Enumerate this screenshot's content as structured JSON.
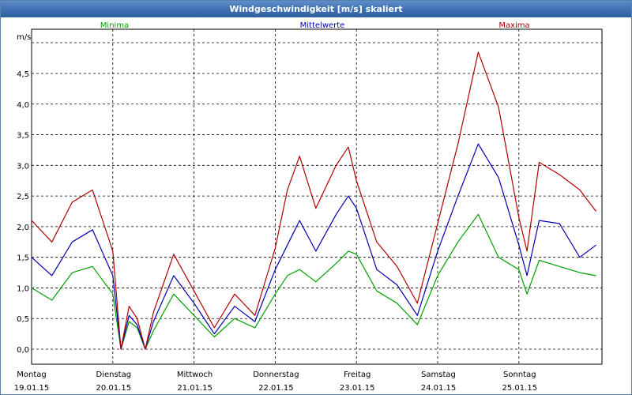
{
  "window": {
    "title": "Windgeschwindigkeit [m/s] skaliert"
  },
  "chart_data": {
    "type": "line",
    "title": "Windgeschwindigkeit [m/s] skaliert",
    "ylabel": "m/s",
    "xlabel": "",
    "ylim": [
      -0.25,
      5.2
    ],
    "xlim": [
      0,
      7
    ],
    "yticks": [
      "0,0",
      "0,5",
      "1,0",
      "1,5",
      "2,0",
      "2,5",
      "3,0",
      "3,5",
      "4,0",
      "4,5"
    ],
    "ytick_values": [
      0,
      0.5,
      1.0,
      1.5,
      2.0,
      2.5,
      3.0,
      3.5,
      4.0,
      4.5
    ],
    "days": [
      {
        "day": "Montag",
        "date": "19.01.15"
      },
      {
        "day": "Dienstag",
        "date": "20.01.15"
      },
      {
        "day": "Mittwoch",
        "date": "21.01.15"
      },
      {
        "day": "Donnerstag",
        "date": "22.01.15"
      },
      {
        "day": "Freitag",
        "date": "23.01.15"
      },
      {
        "day": "Samstag",
        "date": "24.01.15"
      },
      {
        "day": "Sonntag",
        "date": "25.01.15"
      }
    ],
    "grid": true,
    "legend_position": "top",
    "x": [
      0,
      0.25,
      0.5,
      0.75,
      1.0,
      1.1,
      1.2,
      1.3,
      1.4,
      1.5,
      1.75,
      2.0,
      2.25,
      2.5,
      2.75,
      3.0,
      3.15,
      3.3,
      3.5,
      3.75,
      3.9,
      4.0,
      4.25,
      4.5,
      4.75,
      5.0,
      5.25,
      5.5,
      5.75,
      6.0,
      6.1,
      6.25,
      6.5,
      6.75,
      6.95
    ],
    "series": [
      {
        "name": "Minima",
        "color": "#00a000",
        "values": [
          1.0,
          0.8,
          1.25,
          1.35,
          0.9,
          0.0,
          0.45,
          0.35,
          0.0,
          0.3,
          0.9,
          0.55,
          0.2,
          0.5,
          0.35,
          0.9,
          1.2,
          1.3,
          1.1,
          1.4,
          1.6,
          1.55,
          0.95,
          0.75,
          0.4,
          1.2,
          1.75,
          2.2,
          1.5,
          1.3,
          0.9,
          1.45,
          1.35,
          1.25,
          1.2
        ]
      },
      {
        "name": "Mittelwerte",
        "color": "#0000b0",
        "values": [
          1.5,
          1.2,
          1.75,
          1.95,
          1.2,
          0.0,
          0.55,
          0.4,
          0.0,
          0.45,
          1.2,
          0.75,
          0.25,
          0.7,
          0.45,
          1.3,
          1.7,
          2.1,
          1.6,
          2.2,
          2.5,
          2.3,
          1.3,
          1.05,
          0.55,
          1.6,
          2.5,
          3.35,
          2.8,
          1.7,
          1.2,
          2.1,
          2.05,
          1.5,
          1.7
        ]
      },
      {
        "name": "Maxima",
        "color": "#b00000",
        "values": [
          2.1,
          1.75,
          2.4,
          2.6,
          1.6,
          0.0,
          0.7,
          0.5,
          0.0,
          0.6,
          1.55,
          0.95,
          0.35,
          0.9,
          0.55,
          1.65,
          2.6,
          3.15,
          2.3,
          3.0,
          3.3,
          2.75,
          1.75,
          1.35,
          0.75,
          2.05,
          3.35,
          4.85,
          3.95,
          2.15,
          1.6,
          3.05,
          2.85,
          2.6,
          2.25
        ]
      }
    ]
  }
}
